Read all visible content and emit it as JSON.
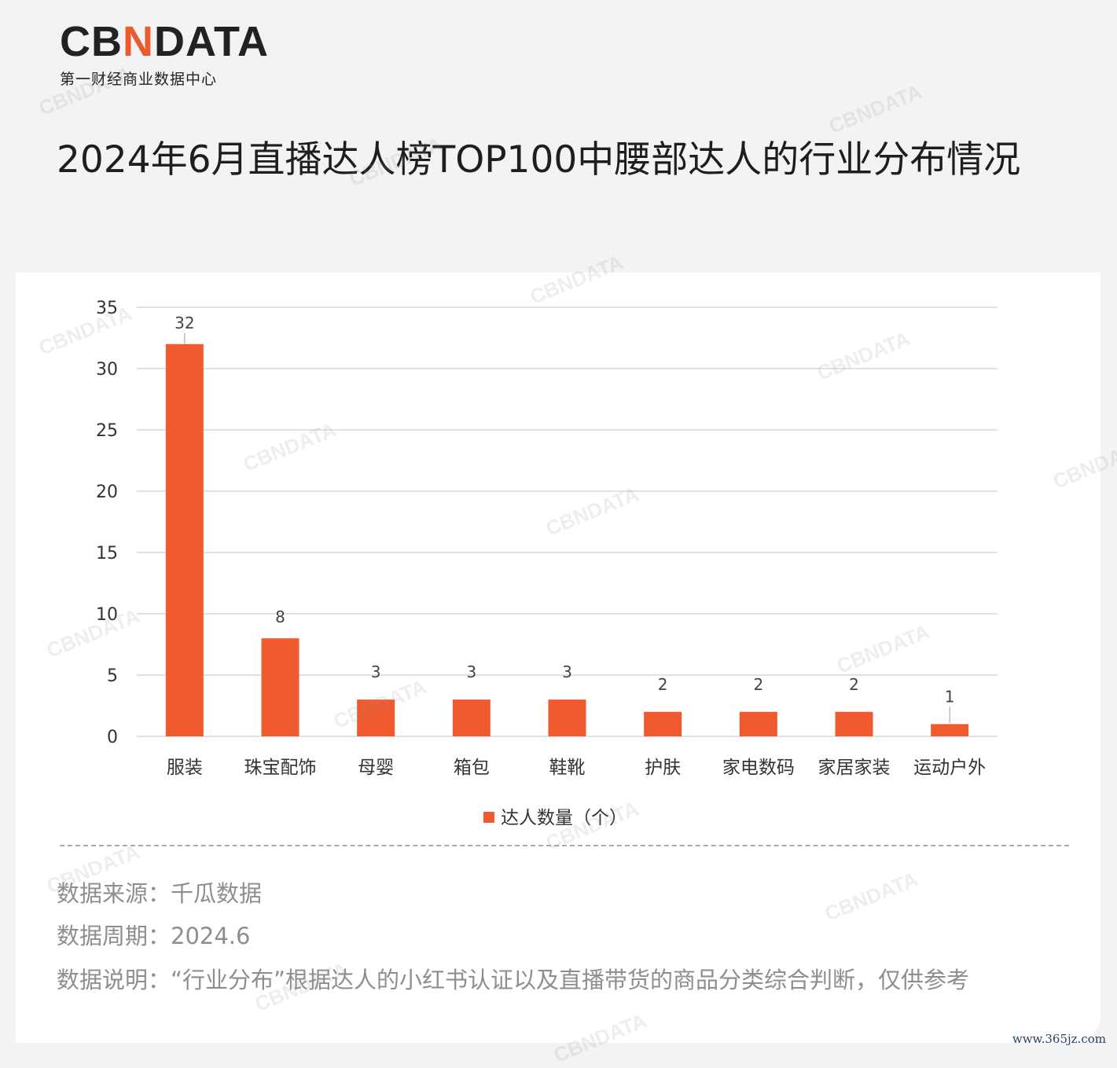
{
  "logo": {
    "mark_left": "CB",
    "mark_accent": "N",
    "mark_right": "DATA",
    "subtitle": "第一财经商业数据中心"
  },
  "title": "2024年6月直播达人榜TOP100中腰部达人的行业分布情况",
  "chart_data": {
    "type": "bar",
    "categories": [
      "服装",
      "珠宝配饰",
      "母婴",
      "箱包",
      "鞋靴",
      "护肤",
      "家电数码",
      "家居家装",
      "运动户外"
    ],
    "series": [
      {
        "name": "达人数量（个）",
        "values": [
          32,
          8,
          3,
          3,
          3,
          2,
          2,
          2,
          1
        ]
      }
    ],
    "xlabel": "",
    "ylabel": "",
    "ylim": [
      0,
      35
    ],
    "yticks": [
      0,
      5,
      10,
      15,
      20,
      25,
      30,
      35
    ],
    "data_labels": true,
    "grid": true,
    "legend": "bottom-center",
    "colors": {
      "bar": "#f05a2e",
      "grid": "#d9d9d9"
    }
  },
  "notes": {
    "source": "数据来源：千瓜数据",
    "period": "数据周期：2024.6",
    "description": "数据说明：“行业分布”根据达人的小红书认证以及直播带货的商品分类综合判断，仅供参考"
  },
  "watermark": "CBNDATA",
  "site_mark": "www.365jz.com"
}
